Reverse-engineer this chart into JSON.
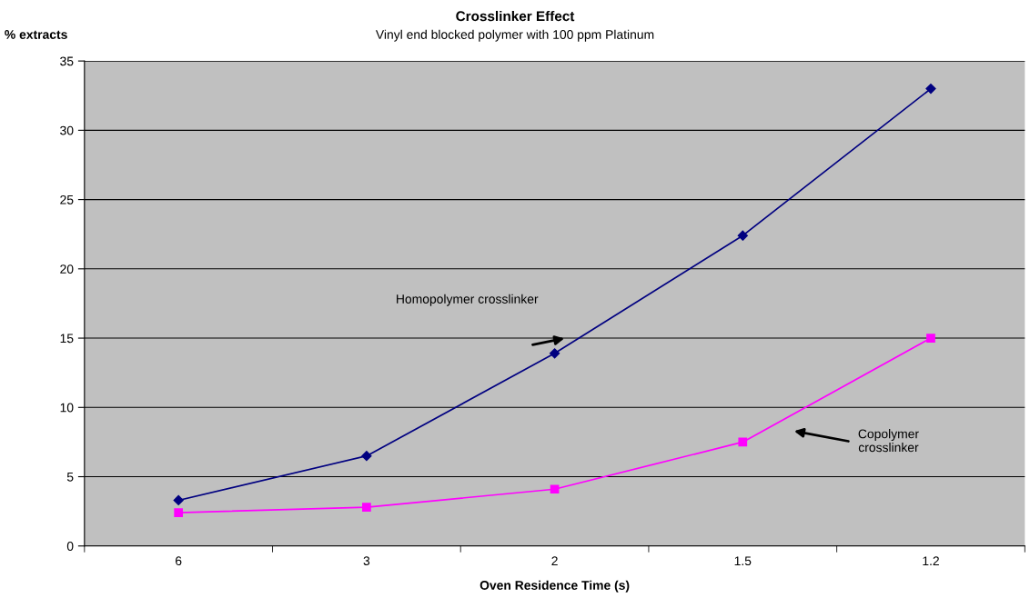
{
  "chart_data": {
    "type": "line",
    "title": "Crosslinker Effect",
    "subtitle": "Vinyl end blocked polymer with 100 ppm Platinum",
    "xlabel": "Oven Residence Time (s)",
    "ylabel": "% extracts",
    "categories": [
      "6",
      "3",
      "2",
      "1.5",
      "1.2"
    ],
    "series": [
      {
        "color": "#000080",
        "marker": "diamond",
        "values": [
          3.3,
          6.5,
          13.9,
          22.4,
          33.0
        ]
      },
      {
        "color": "#ff00ff",
        "marker": "square",
        "values": [
          2.4,
          2.8,
          4.1,
          7.5,
          15.0
        ]
      }
    ],
    "annotations": [
      "Homopolymer crosslinker",
      "Copolymer\ncrosslinker"
    ],
    "ylim": [
      0,
      35
    ],
    "yticks": [
      0,
      5,
      10,
      15,
      20,
      25,
      30,
      35
    ],
    "grid": "y",
    "legend": false,
    "line_style": "solid"
  }
}
